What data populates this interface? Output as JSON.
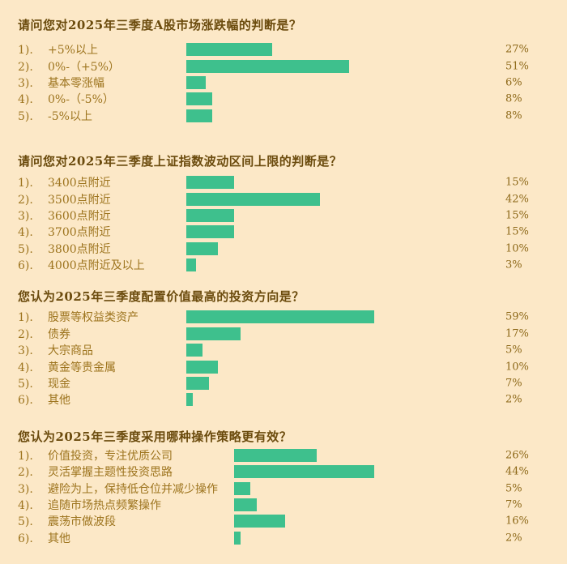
{
  "page": {
    "background_color": "#fce8c7",
    "bar_color": "#3ec08d",
    "title_color": "#6b4b0d",
    "option_text_color": "#9d741e",
    "percent_text_color": "#8d6818"
  },
  "chart_data": [
    {
      "type": "bar",
      "orientation": "horizontal",
      "title": "请问您对2025年三季度A股市场涨跌幅的判断是？",
      "prefixes": [
        "1).",
        "2).",
        "3).",
        "4).",
        "5)."
      ],
      "categories": [
        "+5%以上",
        "0%-（+5%）",
        "基本零涨幅",
        "0%-（-5%）",
        "-5%以上"
      ],
      "values": [
        27,
        51,
        6,
        8,
        8
      ],
      "value_labels": [
        "27%",
        "51%",
        "6%",
        "8%",
        "8%"
      ],
      "unit": "%",
      "xlim": [
        0,
        100
      ],
      "grid": false,
      "legend": false
    },
    {
      "type": "bar",
      "orientation": "horizontal",
      "title": "请问您对2025年三季度上证指数波动区间上限的判断是？",
      "prefixes": [
        "1).",
        "2).",
        "3).",
        "4).",
        "5).",
        "6)."
      ],
      "categories": [
        "3400点附近",
        "3500点附近",
        "3600点附近",
        "3700点附近",
        "3800点附近",
        "4000点附近及以上"
      ],
      "values": [
        15,
        42,
        15,
        15,
        10,
        3
      ],
      "value_labels": [
        "15%",
        "42%",
        "15%",
        "15%",
        "10%",
        "3%"
      ],
      "unit": "%",
      "xlim": [
        0,
        100
      ],
      "grid": false,
      "legend": false
    },
    {
      "type": "bar",
      "orientation": "horizontal",
      "title": "您认为2025年三季度配置价值最高的投资方向是？",
      "prefixes": [
        "1).",
        "2).",
        "3).",
        "4).",
        "5).",
        "6)."
      ],
      "categories": [
        "股票等权益类资产",
        "债券",
        "大宗商品",
        "黄金等贵金属",
        "现金",
        "其他"
      ],
      "values": [
        59,
        17,
        5,
        10,
        7,
        2
      ],
      "value_labels": [
        "59%",
        "17%",
        "5%",
        "10%",
        "7%",
        "2%"
      ],
      "unit": "%",
      "xlim": [
        0,
        100
      ],
      "grid": false,
      "legend": false
    },
    {
      "type": "bar",
      "orientation": "horizontal",
      "title": "您认为2025年三季度采用哪种操作策略更有效？",
      "prefixes": [
        "1).",
        "2).",
        "3).",
        "4).",
        "5).",
        "6)."
      ],
      "categories": [
        "价值投资，专注优质公司",
        "灵活掌握主题性投资思路",
        "避险为上，保持低仓位并减少操作",
        "追随市场热点频繁操作",
        "震荡市做波段",
        "其他"
      ],
      "values": [
        26,
        44,
        5,
        7,
        16,
        2
      ],
      "value_labels": [
        "26%",
        "44%",
        "5%",
        "7%",
        "16%",
        "2%"
      ],
      "unit": "%",
      "xlim": [
        0,
        100
      ],
      "grid": false,
      "legend": false
    }
  ]
}
